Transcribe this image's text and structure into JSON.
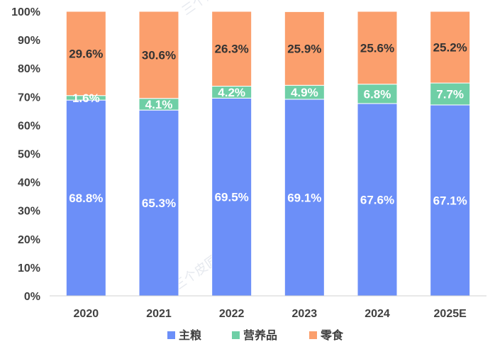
{
  "chart_data": {
    "type": "bar",
    "stacked": true,
    "title": "",
    "xlabel": "",
    "ylabel": "",
    "ylim": [
      0,
      100
    ],
    "grid": false,
    "legend_position": "bottom",
    "y_ticks": [
      "0%",
      "10%",
      "20%",
      "30%",
      "40%",
      "50%",
      "60%",
      "70%",
      "80%",
      "90%",
      "100%"
    ],
    "categories": [
      "2020",
      "2021",
      "2022",
      "2023",
      "2024",
      "2025E"
    ],
    "series": [
      {
        "name": "主粮",
        "color": "#6c8ff8",
        "label_color": "#ffffff",
        "values": [
          68.8,
          65.3,
          69.5,
          69.1,
          67.6,
          67.1
        ],
        "labels": [
          "68.8%",
          "65.3%",
          "69.5%",
          "69.1%",
          "67.6%",
          "67.1%"
        ]
      },
      {
        "name": "营养品",
        "color": "#6fcfa6",
        "label_color": "#ffffff",
        "values": [
          1.6,
          4.1,
          4.2,
          4.9,
          6.8,
          7.7
        ],
        "labels": [
          "1.6%",
          "4.1%",
          "4.2%",
          "4.9%",
          "6.8%",
          "7.7%"
        ]
      },
      {
        "name": "零食",
        "color": "#fb9f6d",
        "label_color": "#333333",
        "values": [
          29.6,
          30.6,
          26.3,
          25.9,
          25.6,
          25.2
        ],
        "labels": [
          "29.6%",
          "30.6%",
          "26.3%",
          "25.9%",
          "25.6%",
          "25.2%"
        ]
      }
    ]
  }
}
